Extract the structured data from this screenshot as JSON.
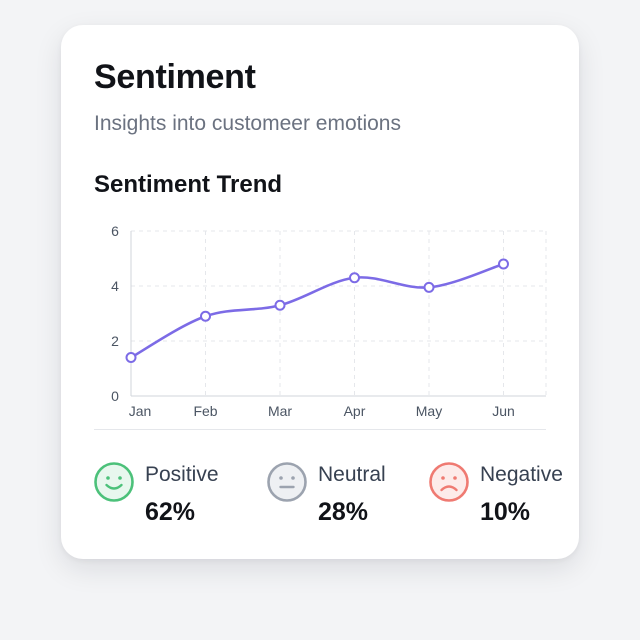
{
  "header": {
    "title": "Sentiment",
    "subtitle": "Insights into customeеr emotions"
  },
  "trend": {
    "title": "Sentiment Trend"
  },
  "chart_data": {
    "type": "line",
    "title": "Sentiment Trend",
    "categories": [
      "Jan",
      "Feb",
      "Mar",
      "Apr",
      "May",
      "Jun"
    ],
    "series": [
      {
        "values": [
          1.4,
          2.9,
          3.3,
          4.3,
          3.95,
          4.8
        ]
      }
    ],
    "ylim": [
      0,
      6
    ],
    "yticks": [
      "0",
      "2",
      "4",
      "6"
    ],
    "grid": true,
    "line_color": "#7c6be6",
    "point_fill": "#ffffff"
  },
  "summary": [
    {
      "label": "Positive",
      "value": "62%",
      "icon": "smile-face-icon",
      "color": "#4cc17a",
      "fill": "#e8f7ee"
    },
    {
      "label": "Neutral",
      "value": "28%",
      "icon": "neutral-face-icon",
      "color": "#9ca3af",
      "fill": "#eef0f3"
    },
    {
      "label": "Negative",
      "value": "10%",
      "icon": "frown-face-icon",
      "color": "#ef7a72",
      "fill": "#fdebea"
    }
  ]
}
